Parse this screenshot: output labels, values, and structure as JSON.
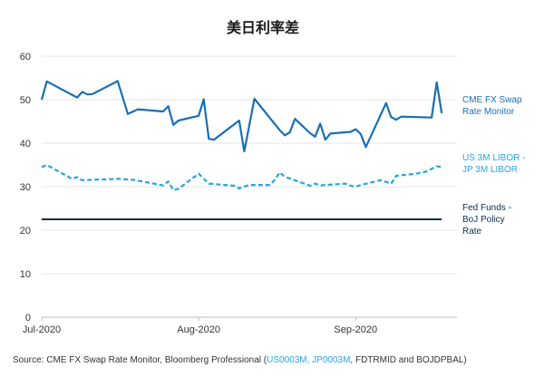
{
  "chart_data": {
    "type": "line",
    "title": "美日利率差",
    "xlabel": "",
    "ylabel": "",
    "ylim": [
      0,
      60
    ],
    "yticks": [
      0,
      10,
      20,
      30,
      40,
      50,
      60
    ],
    "xticks": [
      {
        "day": 0,
        "label": "Jul-2020"
      },
      {
        "day": 31,
        "label": "Aug-2020"
      },
      {
        "day": 62,
        "label": "Sep-2020"
      }
    ],
    "xdomain": [
      0,
      82
    ],
    "grid": true,
    "legend": "right",
    "series": [
      {
        "name": "CME FX Swap Rate Monitor",
        "label_lines": [
          "CME FX Swap",
          "Rate Monitor"
        ],
        "color": "#1a6fb3",
        "style": "solid",
        "points": [
          [
            0,
            50
          ],
          [
            1,
            54.2
          ],
          [
            7,
            50.5
          ],
          [
            8,
            51.8
          ],
          [
            9,
            51.2
          ],
          [
            10,
            51.3
          ],
          [
            15,
            54.3
          ],
          [
            17,
            46.7
          ],
          [
            19,
            47.8
          ],
          [
            24,
            47.3
          ],
          [
            25,
            48.5
          ],
          [
            26,
            44.2
          ],
          [
            27,
            45.2
          ],
          [
            31,
            46.3
          ],
          [
            32,
            50.1
          ],
          [
            33,
            41
          ],
          [
            34,
            40.8
          ],
          [
            39,
            45.2
          ],
          [
            40,
            38.1
          ],
          [
            42,
            50.2
          ],
          [
            47,
            43
          ],
          [
            48,
            41.8
          ],
          [
            49,
            42.5
          ],
          [
            50,
            45.6
          ],
          [
            53,
            42.3
          ],
          [
            54,
            41.5
          ],
          [
            55,
            44.5
          ],
          [
            56,
            40.8
          ],
          [
            57,
            42.2
          ],
          [
            61,
            42.6
          ],
          [
            62,
            43.2
          ],
          [
            63,
            42.1
          ],
          [
            64,
            39.1
          ],
          [
            68,
            49.2
          ],
          [
            69,
            46
          ],
          [
            70,
            45.4
          ],
          [
            71,
            46.1
          ],
          [
            77,
            45.9
          ],
          [
            78,
            54
          ],
          [
            79,
            46.9
          ]
        ]
      },
      {
        "name": "US 3M LIBOR - JP 3M LIBOR",
        "label_lines": [
          "US 3M LIBOR -",
          "JP 3M LIBOR"
        ],
        "color": "#29a3e0",
        "style": "dashed",
        "points": [
          [
            0,
            34.5
          ],
          [
            1,
            35
          ],
          [
            6,
            31.8
          ],
          [
            7,
            32.2
          ],
          [
            8,
            31.5
          ],
          [
            15,
            31.8
          ],
          [
            18,
            31.6
          ],
          [
            24,
            30.3
          ],
          [
            25,
            31.2
          ],
          [
            26,
            29.2
          ],
          [
            27,
            29.5
          ],
          [
            31,
            33
          ],
          [
            33,
            30.7
          ],
          [
            38,
            30.2
          ],
          [
            39,
            29.6
          ],
          [
            41,
            30.4
          ],
          [
            45,
            30.4
          ],
          [
            46,
            31.5
          ],
          [
            47,
            33.3
          ],
          [
            48,
            32.3
          ],
          [
            53,
            30.2
          ],
          [
            54,
            30.7
          ],
          [
            55,
            30.3
          ],
          [
            60,
            30.7
          ],
          [
            61,
            30.2
          ],
          [
            62,
            30
          ],
          [
            63,
            30.4
          ],
          [
            67,
            31.5
          ],
          [
            69,
            30.7
          ],
          [
            70,
            32.5
          ],
          [
            74,
            33
          ],
          [
            76,
            33.5
          ],
          [
            78,
            34.7
          ],
          [
            79,
            34.5
          ]
        ]
      },
      {
        "name": "Fed Funds - BoJ Policy Rate",
        "label_lines": [
          "Fed Funds -",
          "BoJ Policy",
          "Rate"
        ],
        "color": "#0d2d4f",
        "style": "solid",
        "points": [
          [
            0,
            22.5
          ],
          [
            79,
            22.5
          ]
        ]
      }
    ]
  },
  "source": {
    "prefix": "Source: CME FX Swap Rate Monitor, Bloomberg Professional (",
    "link1": "US0003M",
    "sep": ", ",
    "link2": "JP0003M",
    "suffix": ", FDTRMID and BOJDPBAL)"
  }
}
